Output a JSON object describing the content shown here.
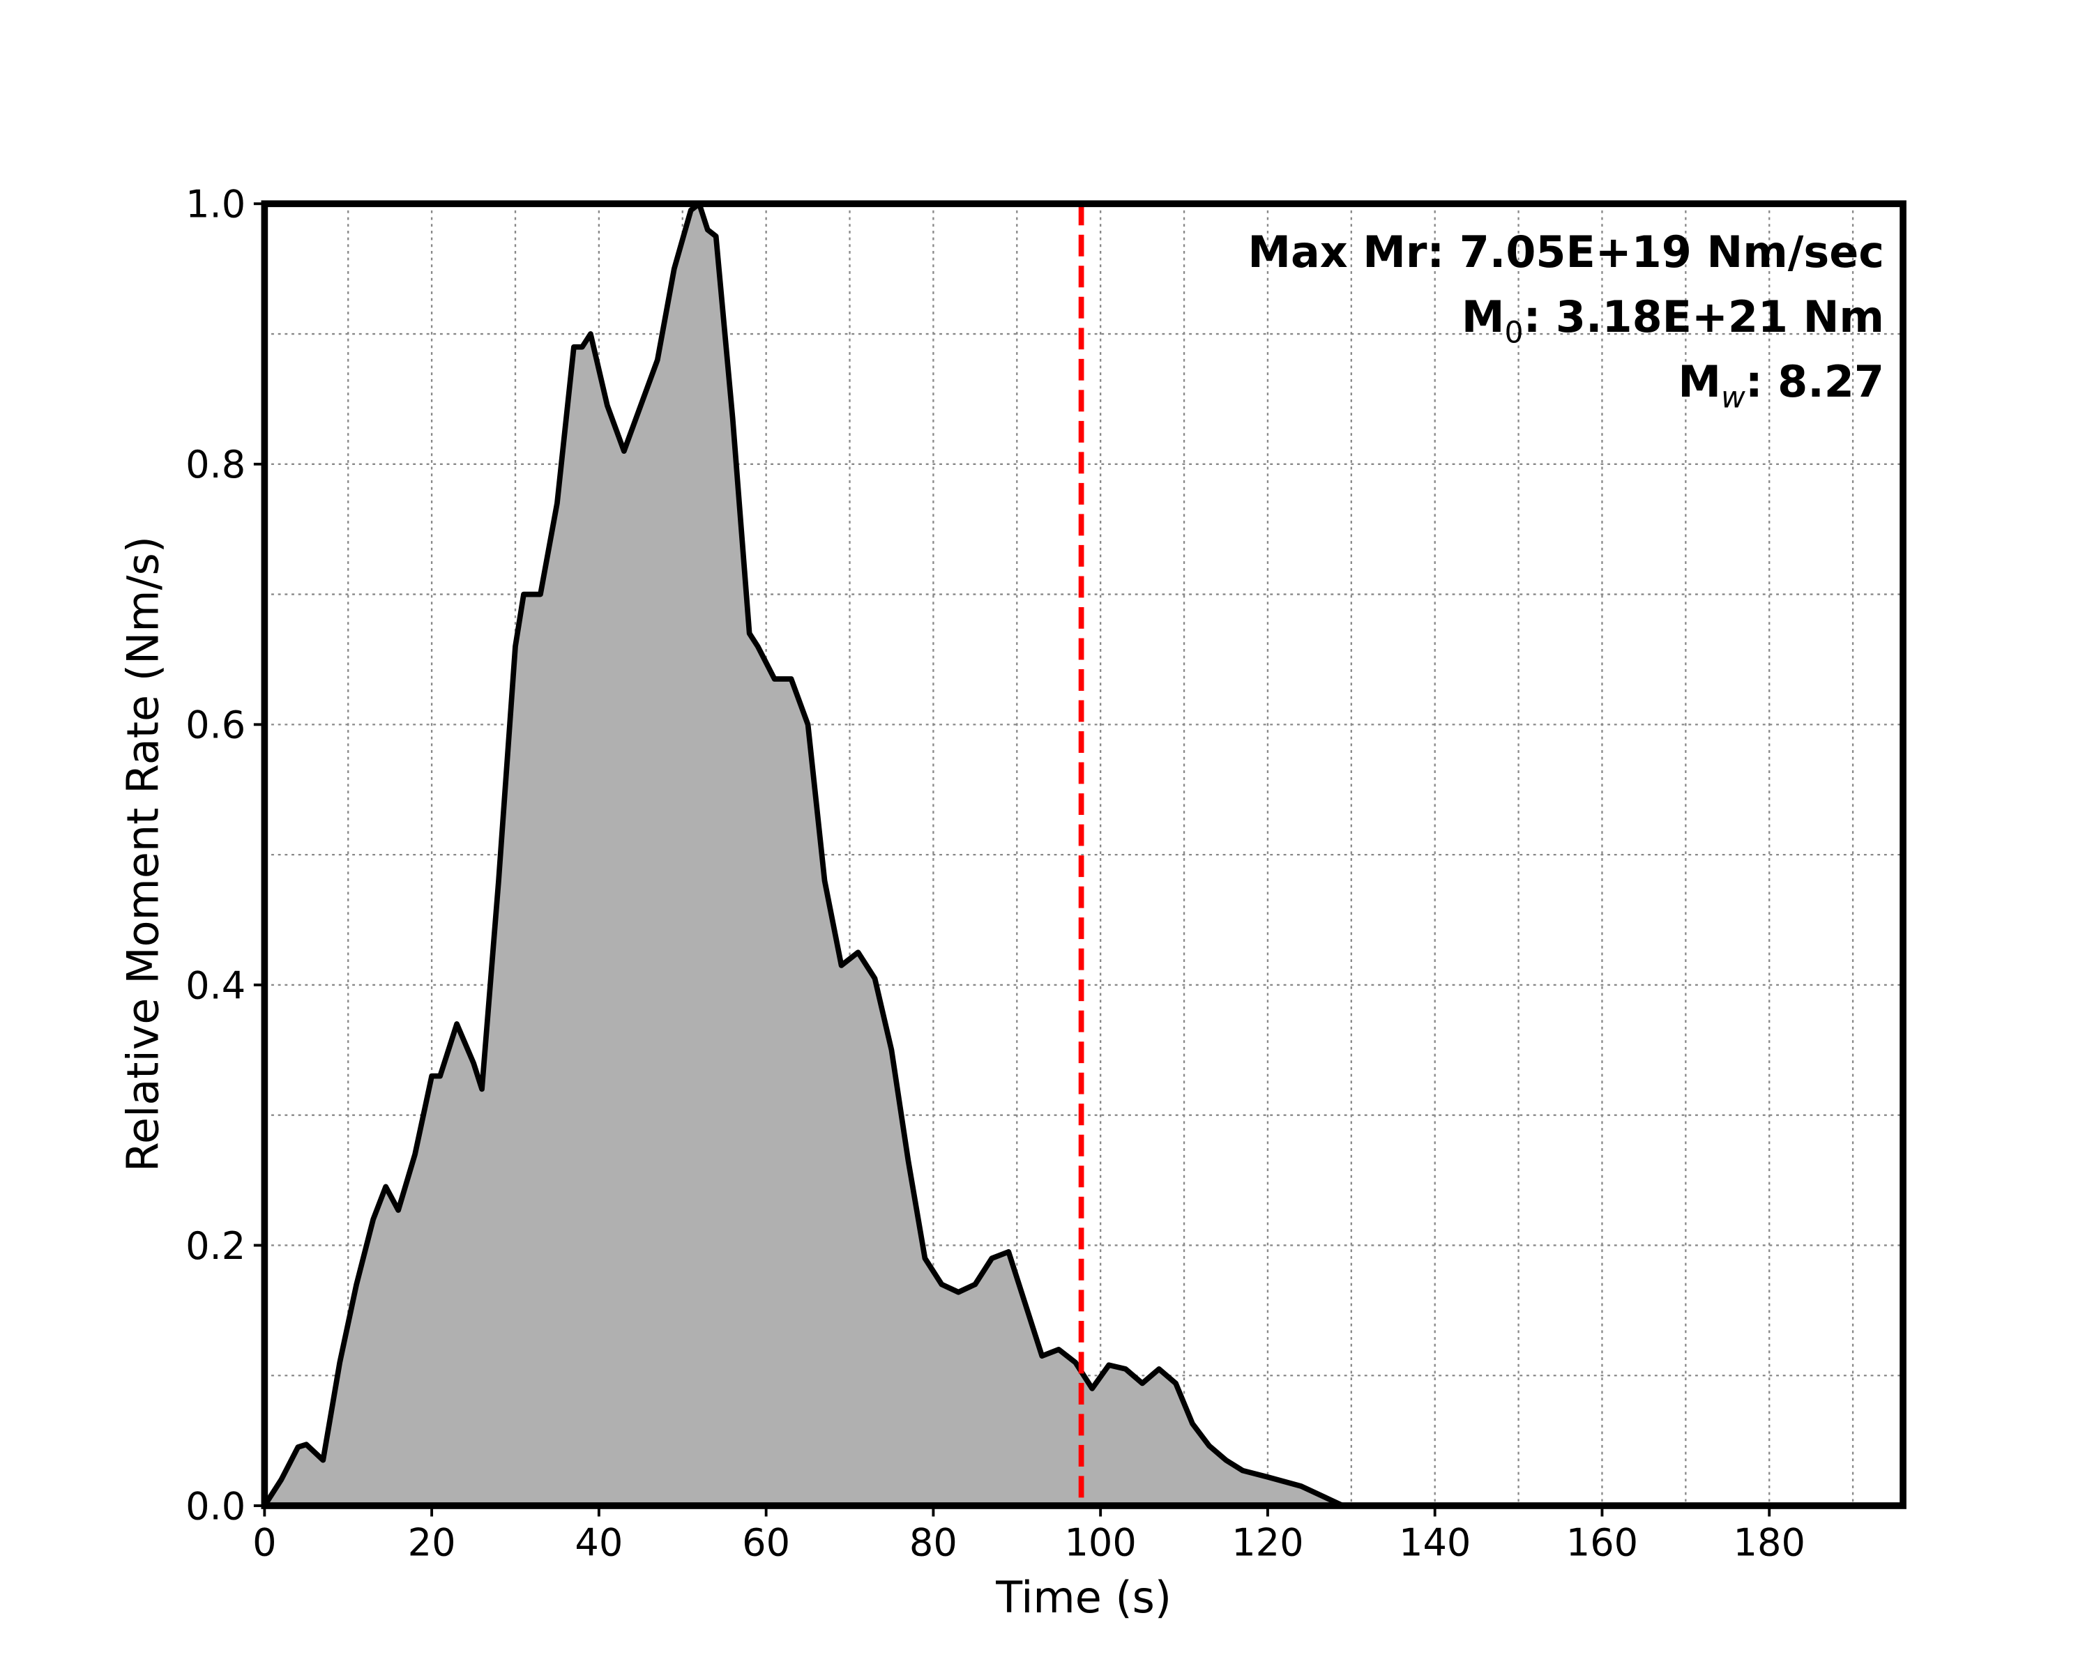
{
  "chart_data": {
    "type": "area",
    "xlabel": "Time (s)",
    "ylabel": "Relative Moment Rate (Nm/s)",
    "x": [
      0,
      2,
      4,
      5,
      7,
      9,
      11,
      13,
      14.5,
      16,
      18,
      20,
      21,
      23,
      25,
      26,
      28,
      30,
      31,
      33,
      35,
      37,
      38,
      39,
      41,
      43,
      45,
      47,
      49,
      51,
      52,
      53,
      54,
      56,
      58,
      59,
      61,
      63,
      65,
      67,
      69,
      71,
      73,
      75,
      77,
      79,
      81,
      83,
      85,
      87,
      89,
      91,
      93,
      95,
      97,
      99,
      101,
      103,
      105,
      107,
      109,
      111,
      113,
      115,
      117,
      120,
      124,
      127,
      129,
      195
    ],
    "values": [
      0,
      0.02,
      0.045,
      0.047,
      0.035,
      0.11,
      0.17,
      0.22,
      0.245,
      0.227,
      0.27,
      0.33,
      0.33,
      0.37,
      0.34,
      0.32,
      0.48,
      0.66,
      0.7,
      0.7,
      0.77,
      0.89,
      0.89,
      0.9,
      0.845,
      0.81,
      0.845,
      0.88,
      0.95,
      0.995,
      1.0,
      0.98,
      0.975,
      0.835,
      0.67,
      0.66,
      0.635,
      0.635,
      0.6,
      0.48,
      0.415,
      0.425,
      0.405,
      0.35,
      0.265,
      0.19,
      0.17,
      0.164,
      0.17,
      0.19,
      0.195,
      0.155,
      0.115,
      0.12,
      0.11,
      0.09,
      0.108,
      0.105,
      0.094,
      0.105,
      0.094,
      0.063,
      0.046,
      0.035,
      0.027,
      0.022,
      0.015,
      0.006,
      0,
      0
    ],
    "fill_color": "#b0b0b0",
    "line_color": "#000000",
    "xlim": [
      0,
      196
    ],
    "ylim": [
      0,
      1.0
    ],
    "xticks": [
      0,
      20,
      40,
      60,
      80,
      100,
      120,
      140,
      160,
      180
    ],
    "yticks": [
      {
        "value": 0,
        "label": "0.0"
      },
      {
        "value": 0.2,
        "label": "0.2"
      },
      {
        "value": 0.4,
        "label": "0.4"
      },
      {
        "value": 0.6,
        "label": "0.6"
      },
      {
        "value": 0.8,
        "label": "0.8"
      },
      {
        "value": 1.0,
        "label": "1.0"
      }
    ],
    "xminorticks": [
      10,
      30,
      50,
      70,
      90,
      110,
      130,
      150,
      170,
      190
    ],
    "yminorticks": [
      0.1,
      0.3,
      0.5,
      0.7,
      0.9
    ],
    "grid": true,
    "vline": {
      "x": 97.7,
      "color": "#ff0000"
    },
    "annotations": [
      {
        "text": "Max Mr: 7.05E+19 Nm/sec"
      },
      {
        "base": "M",
        "sub": "0",
        "text": ": 3.18E+21 Nm"
      },
      {
        "base": "M",
        "sub": "w",
        "text": ": 8.27"
      }
    ]
  }
}
